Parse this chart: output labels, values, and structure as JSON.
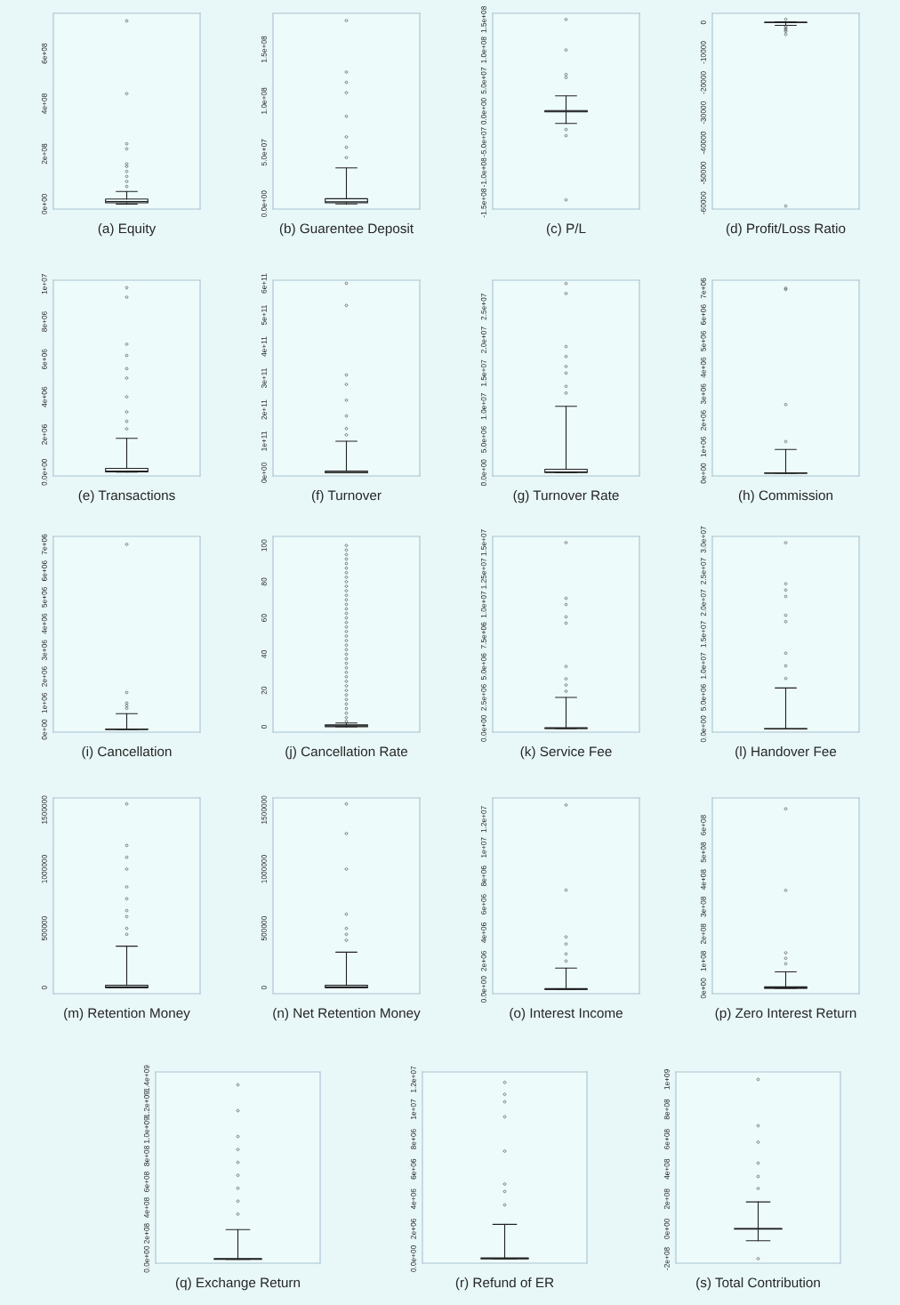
{
  "chart_data": [
    {
      "type": "box",
      "xlabel": "(a) Equity",
      "categories": [
        null
      ],
      "ylim": [
        -20000000,
        760000000
      ],
      "yticks": [
        {
          "value": 0,
          "label": "0e+00"
        },
        {
          "value": 200000000,
          "label": "2e+08"
        },
        {
          "value": 400000000,
          "label": "4e+08"
        },
        {
          "value": 600000000,
          "label": "6e+08"
        }
      ],
      "boxes": [
        {
          "low": 0,
          "q1": 5000000,
          "median": 10000000,
          "q3": 20000000,
          "high": 50000000,
          "outliers": [
            730000000,
            440000000,
            240000000,
            220000000,
            160000000,
            150000000,
            130000000,
            110000000,
            90000000,
            70000000
          ]
        }
      ]
    },
    {
      "type": "box",
      "xlabel": "(b) Guarentee Deposit",
      "categories": [
        null
      ],
      "ylim": [
        -5000000,
        185000000
      ],
      "yticks": [
        {
          "value": 0,
          "label": "0.0e+00"
        },
        {
          "value": 50000000,
          "label": "5.0e+07"
        },
        {
          "value": 100000000,
          "label": "1.0e+08"
        },
        {
          "value": 150000000,
          "label": "1.5e+08"
        }
      ],
      "boxes": [
        {
          "low": 0,
          "q1": 1000000,
          "median": 2000000,
          "q3": 5000000,
          "high": 35000000,
          "outliers": [
            178000000,
            128000000,
            118000000,
            108000000,
            85000000,
            65000000,
            55000000,
            45000000
          ]
        }
      ]
    },
    {
      "type": "box",
      "xlabel": "(c) P/L",
      "categories": [
        null
      ],
      "ylim": [
        -160000000,
        160000000
      ],
      "yticks": [
        {
          "value": -150000000,
          "label": "-1.5e+08"
        },
        {
          "value": -100000000,
          "label": "-1.0e+08"
        },
        {
          "value": -50000000,
          "label": "-5.0e+07"
        },
        {
          "value": 0,
          "label": "0.0e+00"
        },
        {
          "value": 50000000,
          "label": "5.0e+07"
        },
        {
          "value": 100000000,
          "label": "1.0e+08"
        },
        {
          "value": 150000000,
          "label": "1.5e+08"
        }
      ],
      "boxes": [
        {
          "low": -20000000,
          "q1": -1000000,
          "median": 0,
          "q3": 1000000,
          "high": 25000000,
          "outliers": [
            150000000,
            100000000,
            60000000,
            55000000,
            -30000000,
            -40000000,
            -145000000
          ]
        }
      ]
    },
    {
      "type": "box",
      "xlabel": "(d) Profit/Loss Ratio",
      "categories": [
        null
      ],
      "ylim": [
        -62000,
        3000
      ],
      "yticks": [
        0,
        -10000,
        -20000,
        -30000,
        -40000,
        -50000,
        -60000
      ],
      "boxes": [
        {
          "low": -1000,
          "q1": -50,
          "median": 0,
          "q3": 20,
          "high": 200,
          "outliers": [
            -61000,
            -4000,
            -3000,
            -2500,
            -2000,
            -1500,
            1000
          ]
        }
      ]
    },
    {
      "type": "box",
      "xlabel": "(e) Transactions",
      "categories": [
        null
      ],
      "ylim": [
        -200000,
        10200000
      ],
      "yticks": [
        {
          "value": 0,
          "label": "0.0e+00"
        },
        {
          "value": 2000000,
          "label": "2e+06"
        },
        {
          "value": 4000000,
          "label": "4e+06"
        },
        {
          "value": 6000000,
          "label": "6e+06"
        },
        {
          "value": 8000000,
          "label": "8e+06"
        },
        {
          "value": 10000000,
          "label": "1e+07"
        }
      ],
      "boxes": [
        {
          "low": 0,
          "q1": 10000,
          "median": 50000,
          "q3": 200000,
          "high": 1800000,
          "outliers": [
            9800000,
            9300000,
            6800000,
            6200000,
            5500000,
            5000000,
            4000000,
            3200000,
            2700000,
            2300000
          ]
        }
      ]
    },
    {
      "type": "box",
      "xlabel": "(f) Turnover",
      "categories": [
        null
      ],
      "ylim": [
        -10000000000,
        610000000000
      ],
      "yticks": [
        {
          "value": 0,
          "label": "0e+00"
        },
        {
          "value": 100000000000,
          "label": "1e+11"
        },
        {
          "value": 200000000000,
          "label": "2e+11"
        },
        {
          "value": 300000000000,
          "label": "3e+11"
        },
        {
          "value": 400000000000,
          "label": "4e+11"
        },
        {
          "value": 500000000000,
          "label": "5e+11"
        },
        {
          "value": 600000000000,
          "label": "6e+11"
        }
      ],
      "boxes": [
        {
          "low": 0,
          "q1": 0,
          "median": 1000000000,
          "q3": 5000000000,
          "high": 100000000000,
          "outliers": [
            600000000000,
            530000000000,
            310000000000,
            280000000000,
            230000000000,
            180000000000,
            140000000000,
            120000000000
          ]
        }
      ]
    },
    {
      "type": "box",
      "xlabel": "(g) Turnover Rate",
      "categories": [
        null
      ],
      "ylim": [
        -500000,
        29000000
      ],
      "yticks": [
        {
          "value": 0,
          "label": "0.0e+00"
        },
        {
          "value": 5000000,
          "label": "5.0e+06"
        },
        {
          "value": 10000000,
          "label": "1.0e+07"
        },
        {
          "value": 15000000,
          "label": "1.5e+07"
        },
        {
          "value": 20000000,
          "label": "2.0e+07"
        },
        {
          "value": 25000000,
          "label": "2.5e+07"
        }
      ],
      "boxes": [
        {
          "low": 0,
          "q1": 0,
          "median": 100000,
          "q3": 500000,
          "high": 10000000,
          "outliers": [
            28500000,
            27000000,
            19000000,
            17500000,
            16000000,
            15000000,
            13000000,
            12000000
          ]
        }
      ]
    },
    {
      "type": "box",
      "xlabel": "(h) Commission",
      "categories": [
        null
      ],
      "ylim": [
        -100000,
        7300000
      ],
      "yticks": [
        {
          "value": 0,
          "label": "0e+00"
        },
        {
          "value": 1000000,
          "label": "1e+06"
        },
        {
          "value": 2000000,
          "label": "2e+06"
        },
        {
          "value": 3000000,
          "label": "3e+06"
        },
        {
          "value": 4000000,
          "label": "4e+06"
        },
        {
          "value": 5000000,
          "label": "5e+06"
        },
        {
          "value": 6000000,
          "label": "6e+06"
        },
        {
          "value": 7000000,
          "label": "7e+06"
        }
      ],
      "boxes": [
        {
          "low": 0,
          "q1": 0,
          "median": 5000,
          "q3": 20000,
          "high": 900000,
          "outliers": [
            7000000,
            6950000,
            2600000,
            1200000
          ]
        }
      ]
    },
    {
      "type": "box",
      "xlabel": "(i) Cancellation",
      "categories": [
        null
      ],
      "ylim": [
        -100000,
        7300000
      ],
      "yticks": [
        {
          "value": 0,
          "label": "0e+00"
        },
        {
          "value": 1000000,
          "label": "1e+06"
        },
        {
          "value": 2000000,
          "label": "2e+06"
        },
        {
          "value": 3000000,
          "label": "3e+06"
        },
        {
          "value": 4000000,
          "label": "4e+06"
        },
        {
          "value": 5000000,
          "label": "5e+06"
        },
        {
          "value": 6000000,
          "label": "6e+06"
        },
        {
          "value": 7000000,
          "label": "7e+06"
        }
      ],
      "boxes": [
        {
          "low": 0,
          "q1": 0,
          "median": 5000,
          "q3": 20000,
          "high": 600000,
          "outliers": [
            7000000,
            1400000,
            1000000,
            900000,
            800000
          ]
        }
      ]
    },
    {
      "type": "box",
      "xlabel": "(j) Cancellation Rate",
      "categories": [
        null
      ],
      "ylim": [
        -3,
        105
      ],
      "yticks": [
        0,
        20,
        40,
        60,
        80,
        100
      ],
      "boxes": [
        {
          "low": 0,
          "q1": 0,
          "median": 0.5,
          "q3": 1,
          "high": 2,
          "outliers": [
            3,
            5,
            7.5,
            10,
            12.5,
            15,
            17.5,
            20,
            22.5,
            25,
            27.5,
            30,
            32.5,
            35,
            37.5,
            40,
            42.5,
            45,
            47.5,
            50,
            52.5,
            55,
            57.5,
            60,
            62.5,
            65,
            67.5,
            70,
            72.5,
            75,
            77.5,
            80,
            82.5,
            85,
            87.5,
            90,
            92.5,
            95,
            97.5,
            100
          ]
        }
      ]
    },
    {
      "type": "box",
      "xlabel": "(k) Service Fee",
      "categories": [
        null
      ],
      "ylim": [
        -300000,
        15500000
      ],
      "yticks": [
        {
          "value": 0,
          "label": "0.0e+00"
        },
        {
          "value": 2500000,
          "label": "2.5e+06"
        },
        {
          "value": 5000000,
          "label": "5.0e+06"
        },
        {
          "value": 7500000,
          "label": "7.5e+06"
        },
        {
          "value": 10000000,
          "label": "1.0e+07"
        },
        {
          "value": 12500000,
          "label": "1.25e+07"
        },
        {
          "value": 15000000,
          "label": "1.5e+07"
        }
      ],
      "boxes": [
        {
          "low": 0,
          "q1": 0,
          "median": 10000,
          "q3": 50000,
          "high": 2500000,
          "outliers": [
            15000000,
            10500000,
            10000000,
            9000000,
            8500000,
            5000000,
            4000000,
            3500000,
            3000000
          ]
        }
      ]
    },
    {
      "type": "box",
      "xlabel": "(l) Handover Fee",
      "categories": [
        null
      ],
      "ylim": [
        -500000,
        30500000
      ],
      "yticks": [
        {
          "value": 0,
          "label": "0.0e+00"
        },
        {
          "value": 5000000,
          "label": "5.0e+06"
        },
        {
          "value": 10000000,
          "label": "1.0e+07"
        },
        {
          "value": 15000000,
          "label": "1.5e+07"
        },
        {
          "value": 20000000,
          "label": "2.0e+07"
        },
        {
          "value": 25000000,
          "label": "2.5e+07"
        },
        {
          "value": 30000000,
          "label": "3.0e+07"
        }
      ],
      "boxes": [
        {
          "low": 0,
          "q1": 0,
          "median": 10000,
          "q3": 50000,
          "high": 6500000,
          "outliers": [
            29500000,
            23000000,
            22000000,
            21000000,
            18000000,
            17000000,
            12000000,
            10000000,
            8000000
          ]
        }
      ]
    },
    {
      "type": "box",
      "xlabel": "(m) Retention Money",
      "categories": [
        null
      ],
      "ylim": [
        -50000,
        1600000
      ],
      "yticks": [
        0,
        500000,
        1000000,
        1500000
      ],
      "boxes": [
        {
          "low": 0,
          "q1": 0,
          "median": 5000,
          "q3": 20000,
          "high": 350000,
          "outliers": [
            1550000,
            1200000,
            1100000,
            1000000,
            850000,
            750000,
            650000,
            600000,
            500000,
            450000
          ]
        }
      ]
    },
    {
      "type": "box",
      "xlabel": "(n) Net Retention Money",
      "categories": [
        null
      ],
      "ylim": [
        -50000,
        1600000
      ],
      "yticks": [
        0,
        500000,
        1000000,
        1500000
      ],
      "boxes": [
        {
          "low": 0,
          "q1": 0,
          "median": 5000,
          "q3": 20000,
          "high": 300000,
          "outliers": [
            1550000,
            1300000,
            1000000,
            620000,
            500000,
            450000,
            400000
          ]
        }
      ]
    },
    {
      "type": "box",
      "xlabel": "(o) Interest Income",
      "categories": [
        null
      ],
      "ylim": [
        -300000,
        13500000
      ],
      "yticks": [
        {
          "value": 0,
          "label": "0.0e+00"
        },
        {
          "value": 2000000,
          "label": "2e+06"
        },
        {
          "value": 4000000,
          "label": "4e+06"
        },
        {
          "value": 6000000,
          "label": "6e+06"
        },
        {
          "value": 8000000,
          "label": "8e+06"
        },
        {
          "value": 10000000,
          "label": "1e+07"
        },
        {
          "value": 12000000,
          "label": "1.2e+07"
        }
      ],
      "boxes": [
        {
          "low": 0,
          "q1": 0,
          "median": 10000,
          "q3": 50000,
          "high": 1500000,
          "outliers": [
            13000000,
            7000000,
            3700000,
            3200000,
            2500000,
            2000000
          ]
        }
      ]
    },
    {
      "type": "box",
      "xlabel": "(p) Zero Interest Return",
      "categories": [
        null
      ],
      "ylim": [
        -20000000,
        700000000
      ],
      "yticks": [
        {
          "value": 0,
          "label": "0e+00"
        },
        {
          "value": 100000000,
          "label": "1e+08"
        },
        {
          "value": 200000000,
          "label": "2e+08"
        },
        {
          "value": 300000000,
          "label": "3e+08"
        },
        {
          "value": 400000000,
          "label": "4e+08"
        },
        {
          "value": 500000000,
          "label": "5e+08"
        },
        {
          "value": 600000000,
          "label": "6e+08"
        }
      ],
      "boxes": [
        {
          "low": 0,
          "q1": 0,
          "median": 1000000,
          "q3": 5000000,
          "high": 60000000,
          "outliers": [
            660000000,
            360000000,
            130000000,
            110000000,
            90000000
          ]
        }
      ]
    },
    {
      "type": "box",
      "xlabel": "(q) Exchange Return",
      "categories": [
        null
      ],
      "ylim": [
        -30000000,
        1450000000
      ],
      "yticks": [
        {
          "value": 0,
          "label": "0.0e+00"
        },
        {
          "value": 200000000,
          "label": "2e+08"
        },
        {
          "value": 400000000,
          "label": "4e+08"
        },
        {
          "value": 600000000,
          "label": "6e+08"
        },
        {
          "value": 800000000,
          "label": "8e+08"
        },
        {
          "value": 1000000000,
          "label": "1.0e+09"
        },
        {
          "value": 1200000000,
          "label": "1.2e+09"
        },
        {
          "value": 1400000000,
          "label": "1.4e+09"
        }
      ],
      "boxes": [
        {
          "low": 0,
          "q1": 0,
          "median": 1000000,
          "q3": 5000000,
          "high": 230000000,
          "outliers": [
            1350000000,
            1150000000,
            950000000,
            850000000,
            750000000,
            650000000,
            550000000,
            450000000,
            350000000
          ]
        }
      ]
    },
    {
      "type": "box",
      "xlabel": "(r) Refund of ER",
      "categories": [
        null
      ],
      "ylim": [
        -300000,
        12500000
      ],
      "yticks": [
        {
          "value": 0,
          "label": "0.0e+00"
        },
        {
          "value": 2000000,
          "label": "2e+06"
        },
        {
          "value": 4000000,
          "label": "4e+06"
        },
        {
          "value": 6000000,
          "label": "6e+06"
        },
        {
          "value": 8000000,
          "label": "8e+06"
        },
        {
          "value": 10000000,
          "label": "1e+07"
        },
        {
          "value": 12000000,
          "label": "1.2e+07"
        }
      ],
      "boxes": [
        {
          "low": 0,
          "q1": 0,
          "median": 10000,
          "q3": 50000,
          "high": 2300000,
          "outliers": [
            11800000,
            11000000,
            10500000,
            9500000,
            7200000,
            5000000,
            4500000,
            3600000
          ]
        }
      ]
    },
    {
      "type": "box",
      "xlabel": "(s) Total Contribution",
      "categories": [
        null
      ],
      "ylim": [
        -230000000,
        1050000000
      ],
      "yticks": [
        {
          "value": -200000000,
          "label": "-2e+08"
        },
        {
          "value": 0,
          "label": "0e+00"
        },
        {
          "value": 200000000,
          "label": "2e+08"
        },
        {
          "value": 400000000,
          "label": "4e+08"
        },
        {
          "value": 600000000,
          "label": "6e+08"
        },
        {
          "value": 800000000,
          "label": "8e+08"
        },
        {
          "value": 1000000000,
          "label": "1e+09"
        }
      ],
      "boxes": [
        {
          "low": -80000000,
          "q1": -2000000,
          "median": 0,
          "q3": 2000000,
          "high": 180000000,
          "outliers": [
            1000000000,
            690000000,
            580000000,
            440000000,
            350000000,
            270000000,
            -200000000
          ]
        }
      ]
    }
  ]
}
